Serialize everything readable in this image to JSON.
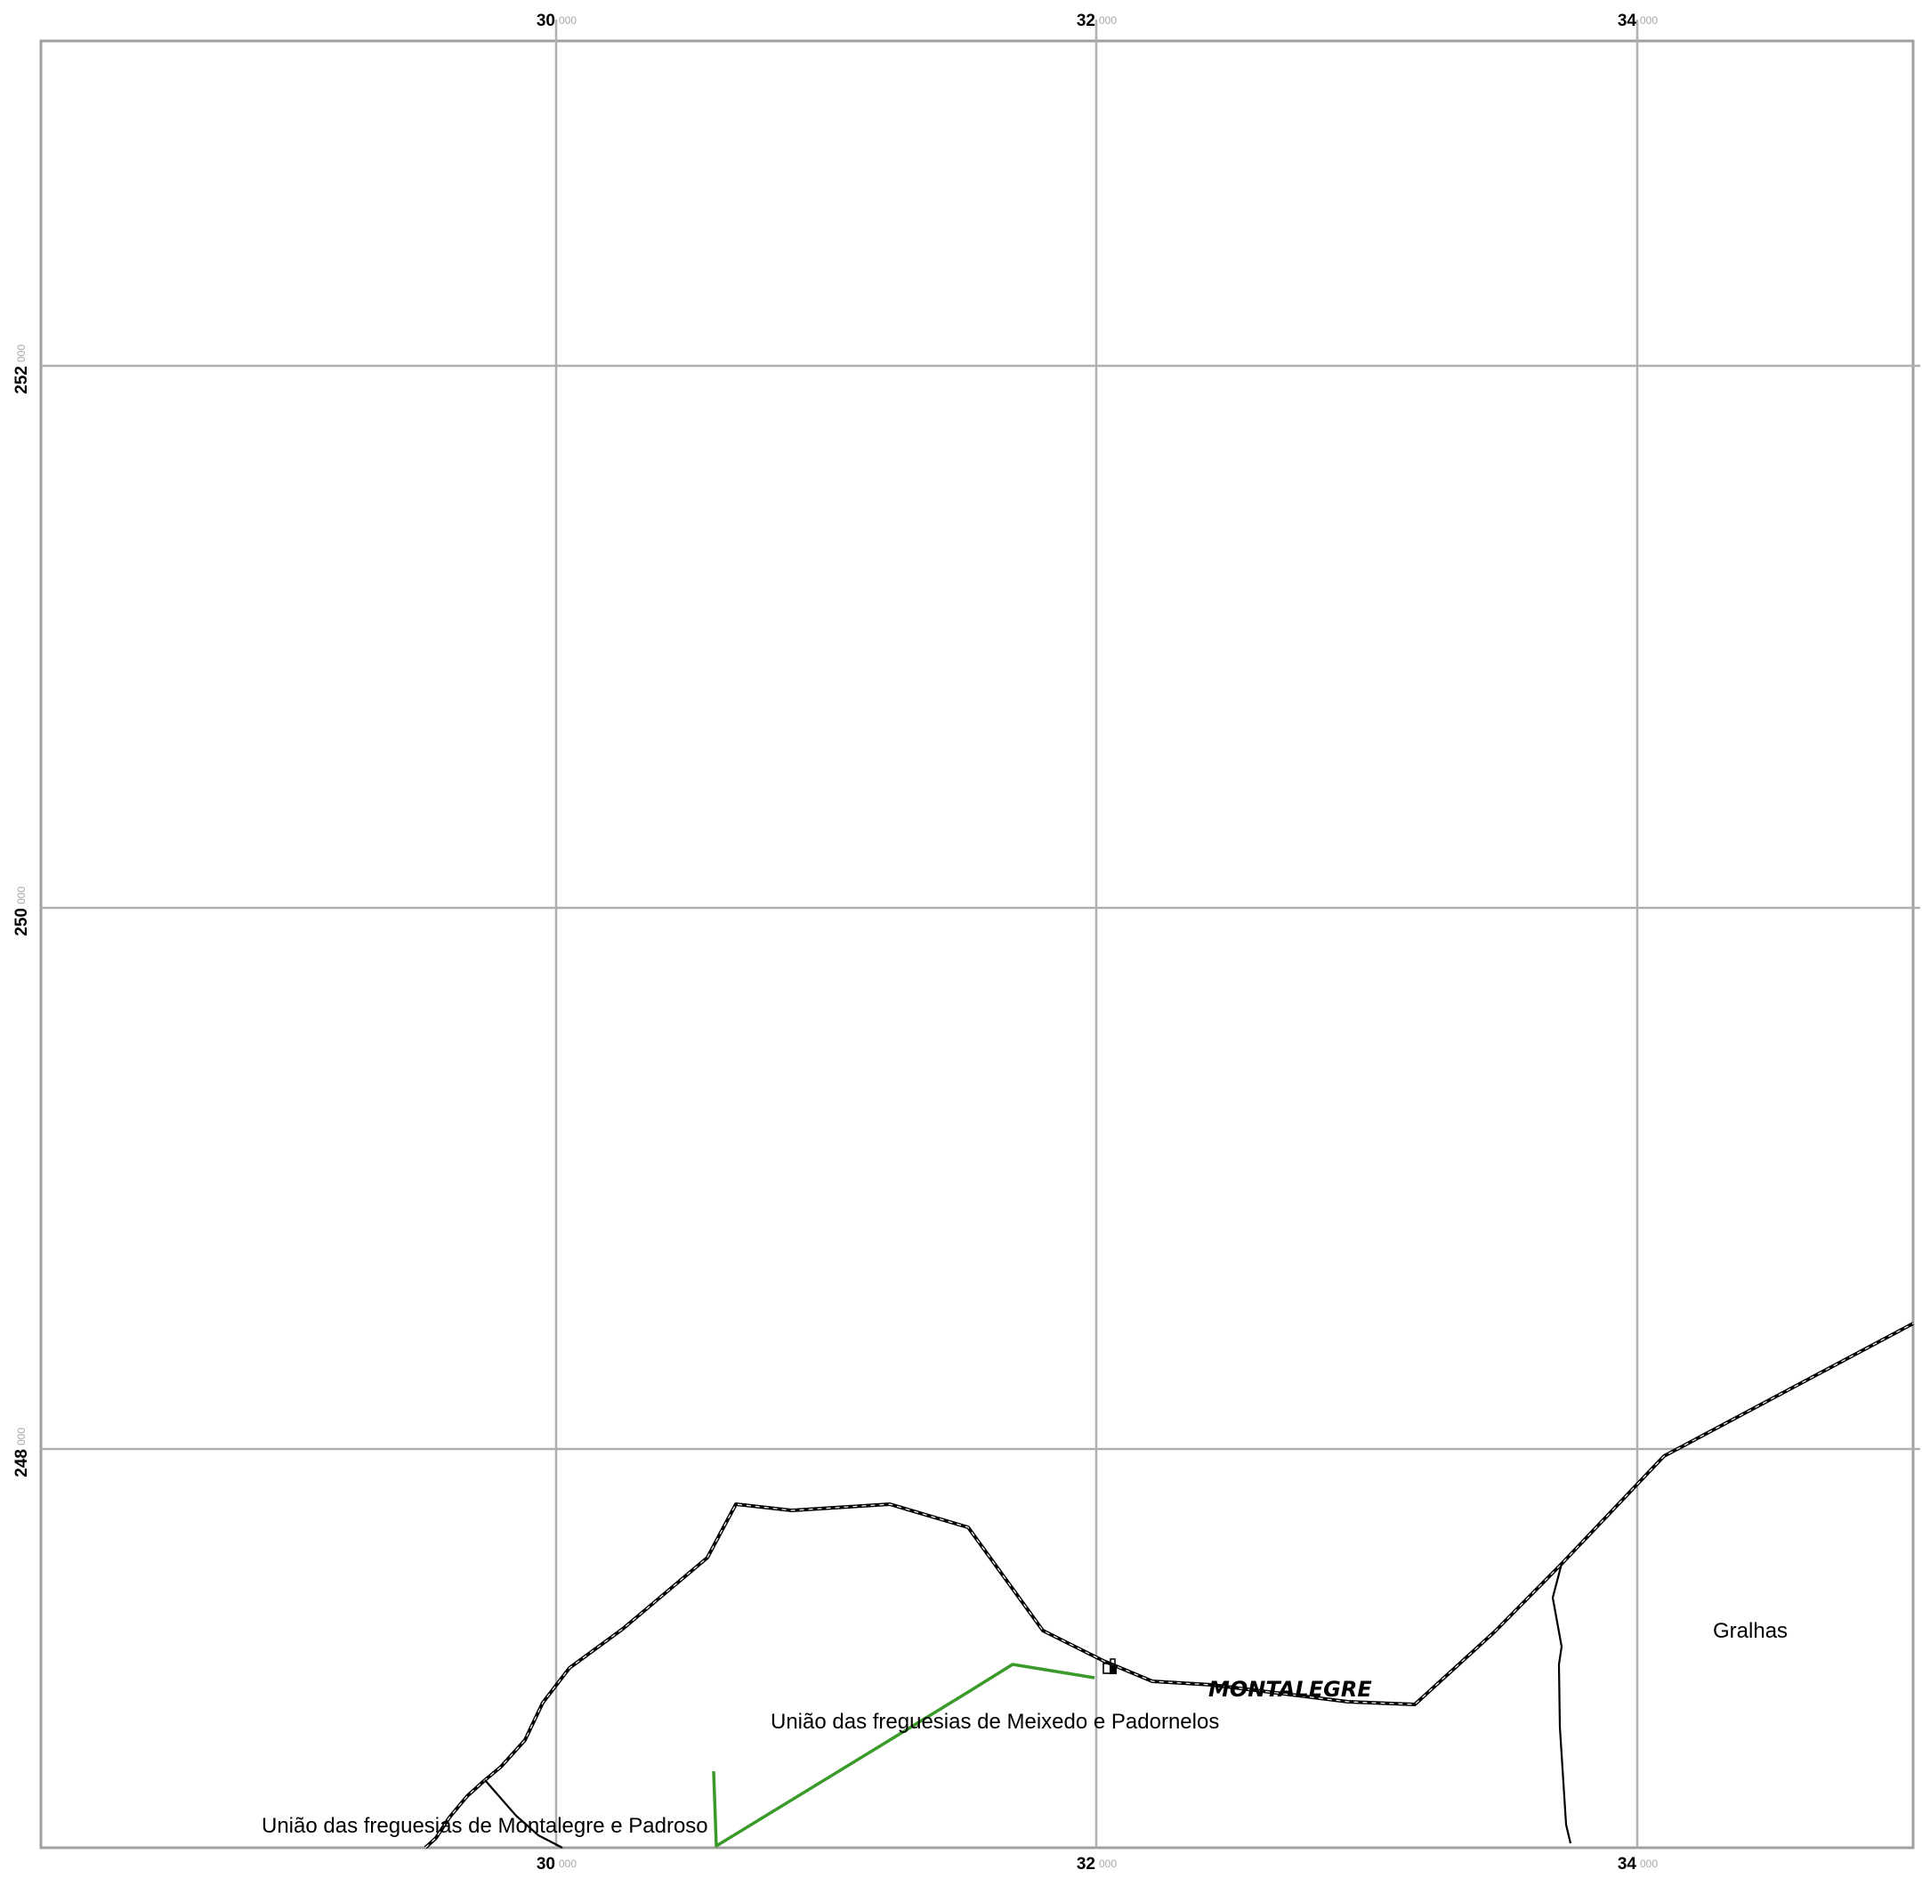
{
  "map": {
    "colors": {
      "grid": "#b0b0b0",
      "frame": "#a0a0a0",
      "boundary": "#000000",
      "road": "#3a9a2a",
      "background": "#ffffff"
    },
    "grid_x": {
      "major": [
        "30",
        "32",
        "34"
      ],
      "minor": "000"
    },
    "grid_y": {
      "major": [
        "252",
        "250",
        "248"
      ],
      "minor": "000"
    },
    "labels": {
      "gralhas": "Gralhas",
      "montalegre": "MONTALEGRE",
      "meixedo": "União das freguesias de Meixedo e Padornelos",
      "montalegre_padroso": "União das freguesias de Montalegre e Padroso"
    },
    "icons": [
      "building-icon",
      "pin-icon"
    ]
  }
}
